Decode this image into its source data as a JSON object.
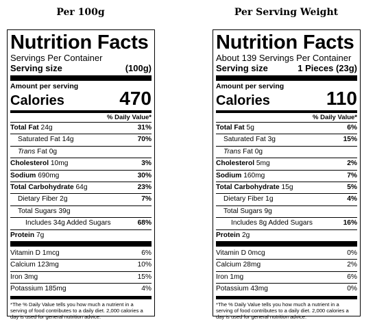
{
  "columns": [
    {
      "heading": "Per 100g",
      "title": "Nutrition Facts",
      "servings_per_container": "Servings Per Container",
      "serving_size_label": "Serving size",
      "serving_size_value": "(100g)",
      "amount_per_serving": "Amount per serving",
      "calories_label": "Calories",
      "calories_value": "470",
      "dv_header": "% Daily Value*",
      "total_fat": {
        "label": "Total Fat",
        "amount": "24g",
        "dv": "31%"
      },
      "saturated_fat": {
        "label": "Saturated Fat",
        "amount": "14g",
        "dv": "70%"
      },
      "trans_fat": {
        "label": "Trans",
        "suffix": "Fat",
        "amount": "0g"
      },
      "cholesterol": {
        "label": "Cholesterol",
        "amount": "10mg",
        "dv": "3%"
      },
      "sodium": {
        "label": "Sodium",
        "amount": "690mg",
        "dv": "30%"
      },
      "total_carb": {
        "label": "Total Carbohydrate",
        "amount": "64g",
        "dv": "23%"
      },
      "dietary_fiber": {
        "label": "Dietary Fiber",
        "amount": "2g",
        "dv": "7%"
      },
      "total_sugars": {
        "label": "Total Sugars",
        "amount": "39g"
      },
      "added_sugars": {
        "label": "Includes 34g Added Sugars",
        "dv": "68%"
      },
      "protein": {
        "label": "Protein",
        "amount": "7g"
      },
      "vitamin_d": {
        "label": "Vitamin D 1mcg",
        "dv": "6%"
      },
      "calcium": {
        "label": "Calcium 123mg",
        "dv": "10%"
      },
      "iron": {
        "label": "Iron 3mg",
        "dv": "15%"
      },
      "potassium": {
        "label": "Potassium 185mg",
        "dv": "4%"
      },
      "footnote": "*The % Daily Value tells you how much a nutrient in a serving of food contributes to a daily diet. 2,000 calories a day is used for general nutrition advice."
    },
    {
      "heading": "Per Serving Weight",
      "title": "Nutrition Facts",
      "servings_per_container": "About 139 Servings Per Container",
      "serving_size_label": "Serving size",
      "serving_size_value": "1 Pieces (23g)",
      "amount_per_serving": "Amount per serving",
      "calories_label": "Calories",
      "calories_value": "110",
      "dv_header": "% Daily Value*",
      "total_fat": {
        "label": "Total Fat",
        "amount": "5g",
        "dv": "6%"
      },
      "saturated_fat": {
        "label": "Saturated Fat",
        "amount": "3g",
        "dv": "15%"
      },
      "trans_fat": {
        "label": "Trans",
        "suffix": "Fat",
        "amount": "0g"
      },
      "cholesterol": {
        "label": "Cholesterol",
        "amount": "5mg",
        "dv": "2%"
      },
      "sodium": {
        "label": "Sodium",
        "amount": "160mg",
        "dv": "7%"
      },
      "total_carb": {
        "label": "Total Carbohydrate",
        "amount": "15g",
        "dv": "5%"
      },
      "dietary_fiber": {
        "label": "Dietary Fiber",
        "amount": "1g",
        "dv": "4%"
      },
      "total_sugars": {
        "label": "Total Sugars",
        "amount": "9g"
      },
      "added_sugars": {
        "label": "Includes 8g Added Sugars",
        "dv": "16%"
      },
      "protein": {
        "label": "Protein",
        "amount": "2g"
      },
      "vitamin_d": {
        "label": "Vitamin D 0mcg",
        "dv": "0%"
      },
      "calcium": {
        "label": "Calcium 28mg",
        "dv": "2%"
      },
      "iron": {
        "label": "Iron 1mg",
        "dv": "6%"
      },
      "potassium": {
        "label": "Potassium 43mg",
        "dv": "0%"
      },
      "footnote": "*The % Daily Value tells you how much a nutrient in a serving of food contributes to a daily diet. 2,000 calories a day is used for general nutrition advice."
    }
  ]
}
